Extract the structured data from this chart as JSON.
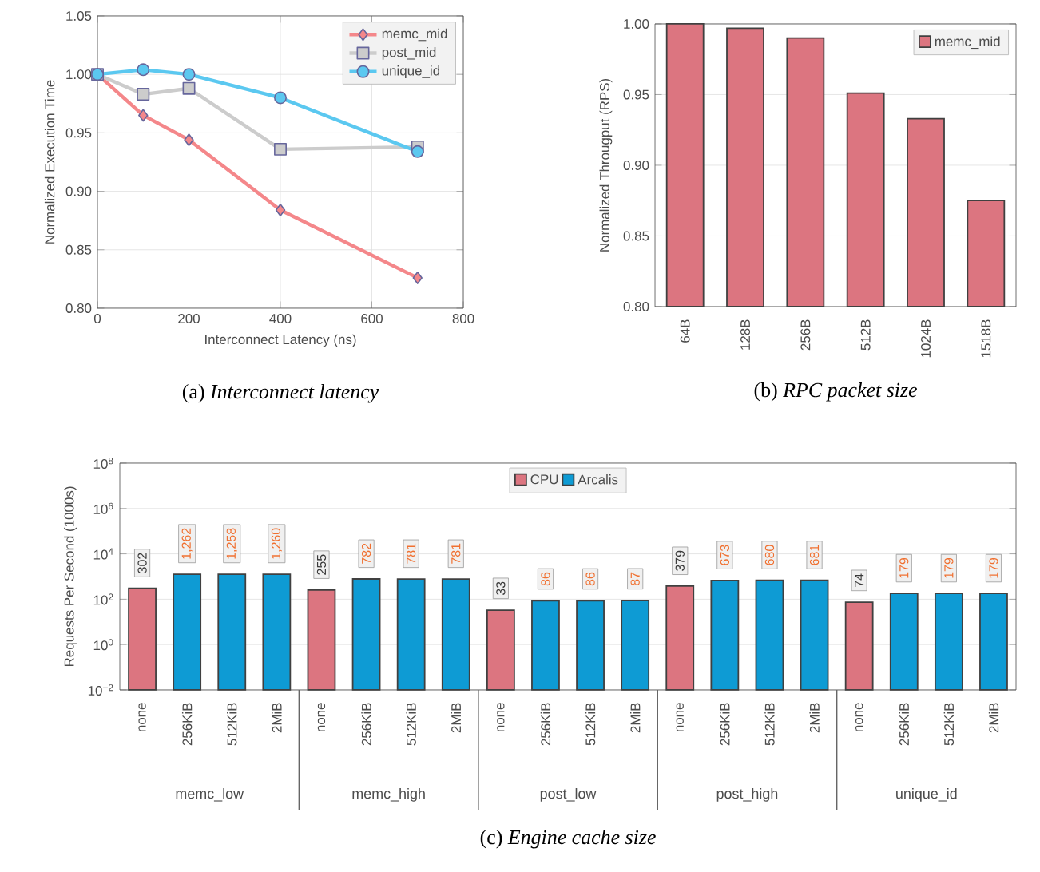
{
  "chart_data": [
    {
      "type": "line",
      "title": "(a) *Interconnect latency*",
      "xlabel": "Interconnect Latency (ns)",
      "ylabel": "Normalized Execution Time",
      "xlim": [
        0,
        800
      ],
      "xticks": [
        0,
        200,
        400,
        600,
        800
      ],
      "ylim": [
        0.8,
        1.05
      ],
      "yticks": [
        {
          "value": 0.8,
          "label": "0.80"
        },
        {
          "value": 0.85,
          "label": "0.85"
        },
        {
          "value": 0.9,
          "label": "0.90"
        },
        {
          "value": 0.95,
          "label": "0.95"
        },
        {
          "value": 1.0,
          "label": "1.00"
        },
        {
          "value": 1.05,
          "label": "1.05"
        }
      ],
      "grid": true,
      "legend": "top right",
      "line_style": "solid",
      "series": [
        {
          "name": "memc_mid",
          "color": "#f4878a",
          "marker": "diamond",
          "x": [
            0,
            100,
            200,
            400,
            700
          ],
          "values": [
            1.0,
            0.965,
            0.944,
            0.884,
            0.826
          ]
        },
        {
          "name": "post_mid",
          "color": "#cccccc",
          "marker": "square",
          "x": [
            0,
            100,
            200,
            400,
            700
          ],
          "values": [
            1.0,
            0.983,
            0.988,
            0.936,
            0.938
          ]
        },
        {
          "name": "unique_id",
          "color": "#5bc8f0",
          "marker": "circle",
          "x": [
            0,
            100,
            200,
            400,
            700
          ],
          "values": [
            1.0,
            1.004,
            1.0,
            0.98,
            0.934
          ]
        }
      ]
    },
    {
      "type": "bar",
      "title": "(b) *RPC packet size*",
      "ylabel": "Normalized Througput (RPS)",
      "categories": [
        "64B",
        "128B",
        "256B",
        "512B",
        "1024B",
        "1518B"
      ],
      "ylim": [
        0.8,
        1.0
      ],
      "yticks": [
        {
          "value": 0.8,
          "label": "0.80"
        },
        {
          "value": 0.85,
          "label": "0.85"
        },
        {
          "value": 0.9,
          "label": "0.90"
        },
        {
          "value": 0.95,
          "label": "0.95"
        },
        {
          "value": 1.0,
          "label": "1.00"
        }
      ],
      "grid": "y",
      "legend": "top right",
      "series": [
        {
          "name": "memc_mid",
          "color": "#dc7580",
          "values": [
            1.0,
            0.997,
            0.99,
            0.951,
            0.933,
            0.875
          ]
        }
      ]
    },
    {
      "type": "bar",
      "title": "(c) *Engine cache size*",
      "ylabel": "Requests Per Second (1000s)",
      "log": "y",
      "categories": [
        "none",
        "256KiB",
        "512KiB",
        "2MiB",
        "none",
        "256KiB",
        "512KiB",
        "2MiB",
        "none",
        "256KiB",
        "512KiB",
        "2MiB",
        "none",
        "256KiB",
        "512KiB",
        "2MiB",
        "none",
        "256KiB",
        "512KiB",
        "2MiB"
      ],
      "ylim": [
        0.01,
        100000000
      ],
      "yticks": [
        {
          "value": 0.01,
          "label": "10$^{−2}$"
        },
        {
          "value": 1,
          "label": "10$^{0}$"
        },
        {
          "value": 100,
          "label": "10$^{2}$"
        },
        {
          "value": 10000,
          "label": "10$^{4}$"
        },
        {
          "value": 1000000,
          "label": "10$^{6}$"
        },
        {
          "value": 100000000,
          "label": "10$^{8}$"
        }
      ],
      "grid": "y",
      "legend": "top",
      "annotations": [
        "memc_low",
        "memc_high",
        "post_low",
        "post_high",
        "unique_id"
      ],
      "series": [
        {
          "name": "CPU",
          "color": "#dc7580",
          "values": [
            302,
            null,
            null,
            null,
            255,
            null,
            null,
            null,
            33,
            null,
            null,
            null,
            379,
            null,
            null,
            null,
            74,
            null,
            null,
            null
          ],
          "value_labels": [
            "302",
            null,
            null,
            null,
            "255",
            null,
            null,
            null,
            "33",
            null,
            null,
            null,
            "379",
            null,
            null,
            null,
            "74",
            null,
            null,
            null
          ]
        },
        {
          "name": "Arcalis",
          "color": "#0e9bd4",
          "values": [
            null,
            1262,
            1258,
            1260,
            null,
            782,
            781,
            781,
            null,
            86,
            86,
            87,
            null,
            673,
            680,
            681,
            null,
            179,
            179,
            179
          ],
          "value_labels": [
            null,
            "1,262",
            "1,258",
            "1,260",
            null,
            "782",
            "781",
            "781",
            null,
            "86",
            "86",
            "87",
            null,
            "673",
            "680",
            "681",
            null,
            "179",
            "179",
            "179"
          ]
        }
      ]
    }
  ]
}
